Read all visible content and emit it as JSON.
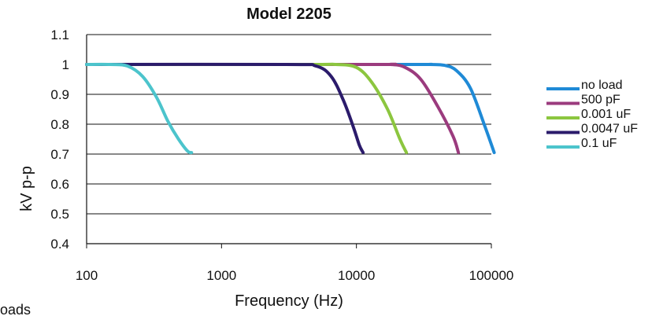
{
  "page": {
    "clipped_note": "oads"
  },
  "chart_data": {
    "type": "line",
    "title": "Model 2205",
    "xlabel": "Frequency (Hz)",
    "ylabel": "kV p-p",
    "x_scale": "log",
    "xlim": [
      100,
      100000
    ],
    "ylim": [
      0.4,
      1.1
    ],
    "x_ticks": [
      "100",
      "1000",
      "10000",
      "100000"
    ],
    "y_ticks": [
      "0.4",
      "0.5",
      "0.6",
      "0.7",
      "0.8",
      "0.9",
      "1",
      "1.1"
    ],
    "grid": "horizontal",
    "legend_position": "right",
    "series": [
      {
        "name": "no load",
        "color": "#1f8ad6",
        "x": [
          100,
          20000,
          35000,
          45000,
          55000,
          70000,
          90000,
          105000
        ],
        "y": [
          1,
          1,
          1,
          0.997,
          0.98,
          0.92,
          0.79,
          0.705
        ]
      },
      {
        "name": "500 pF",
        "color": "#9b3b7e",
        "x": [
          100,
          12000,
          18000,
          23000,
          30000,
          40000,
          52000,
          57000
        ],
        "y": [
          1,
          1,
          1,
          0.99,
          0.95,
          0.86,
          0.76,
          0.705
        ]
      },
      {
        "name": "0.001 uF",
        "color": "#8cc63f",
        "x": [
          100,
          4000,
          7000,
          10000,
          13000,
          17000,
          21000,
          23500
        ],
        "y": [
          1,
          1,
          1,
          0.99,
          0.94,
          0.85,
          0.75,
          0.705
        ]
      },
      {
        "name": "0.0047 uF",
        "color": "#2b1b6b",
        "x": [
          100,
          3000,
          5000,
          6500,
          8000,
          9500,
          10500,
          11200
        ],
        "y": [
          1,
          1,
          0.995,
          0.96,
          0.88,
          0.79,
          0.73,
          0.705
        ]
      },
      {
        "name": "0.1 uF",
        "color": "#4cc4cc",
        "x": [
          100,
          150,
          200,
          260,
          330,
          400,
          480,
          560,
          600
        ],
        "y": [
          1,
          1,
          0.995,
          0.96,
          0.89,
          0.81,
          0.75,
          0.71,
          0.705
        ]
      }
    ]
  }
}
